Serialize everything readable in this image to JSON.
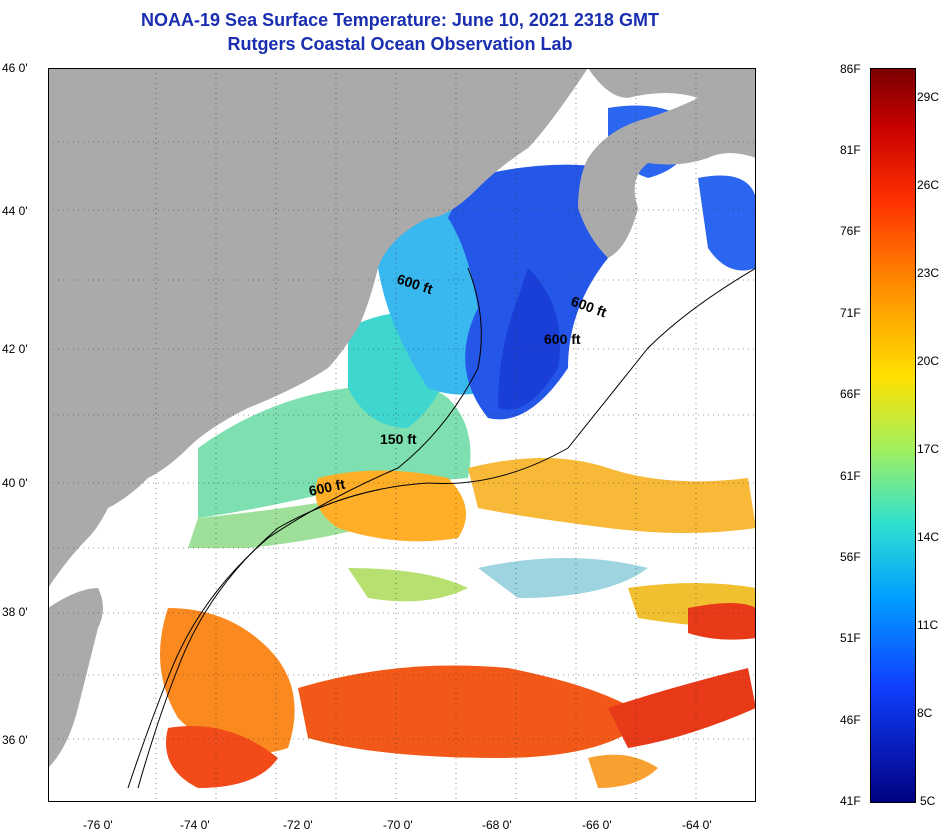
{
  "title_line1": "NOAA-19 Sea Surface Temperature:  June 10, 2021 2318 GMT",
  "title_line2": "Rutgers Coastal Ocean Observation Lab",
  "colors": {
    "title": "#1a2fb0",
    "land": "#aaaaaa",
    "cloud": "#ffffff"
  },
  "lat_labels": [
    "46 0'",
    "44 0'",
    "42 0'",
    "40 0'",
    "38 0'",
    "36 0'"
  ],
  "lon_labels": [
    "-76 0'",
    "-74 0'",
    "-72 0'",
    "-70 0'",
    "-68 0'",
    "-66 0'",
    "-64 0'"
  ],
  "contour_labels": [
    "600 ft",
    "600 ft",
    "600 ft",
    "150 ft",
    "600 ft"
  ],
  "colorbar": {
    "fahrenheit": [
      "86F",
      "81F",
      "76F",
      "71F",
      "66F",
      "61F",
      "56F",
      "51F",
      "46F",
      "41F"
    ],
    "celsius": [
      "29C",
      "26C",
      "23C",
      "20C",
      "17C",
      "14C",
      "11C",
      "8C",
      "5C"
    ]
  }
}
